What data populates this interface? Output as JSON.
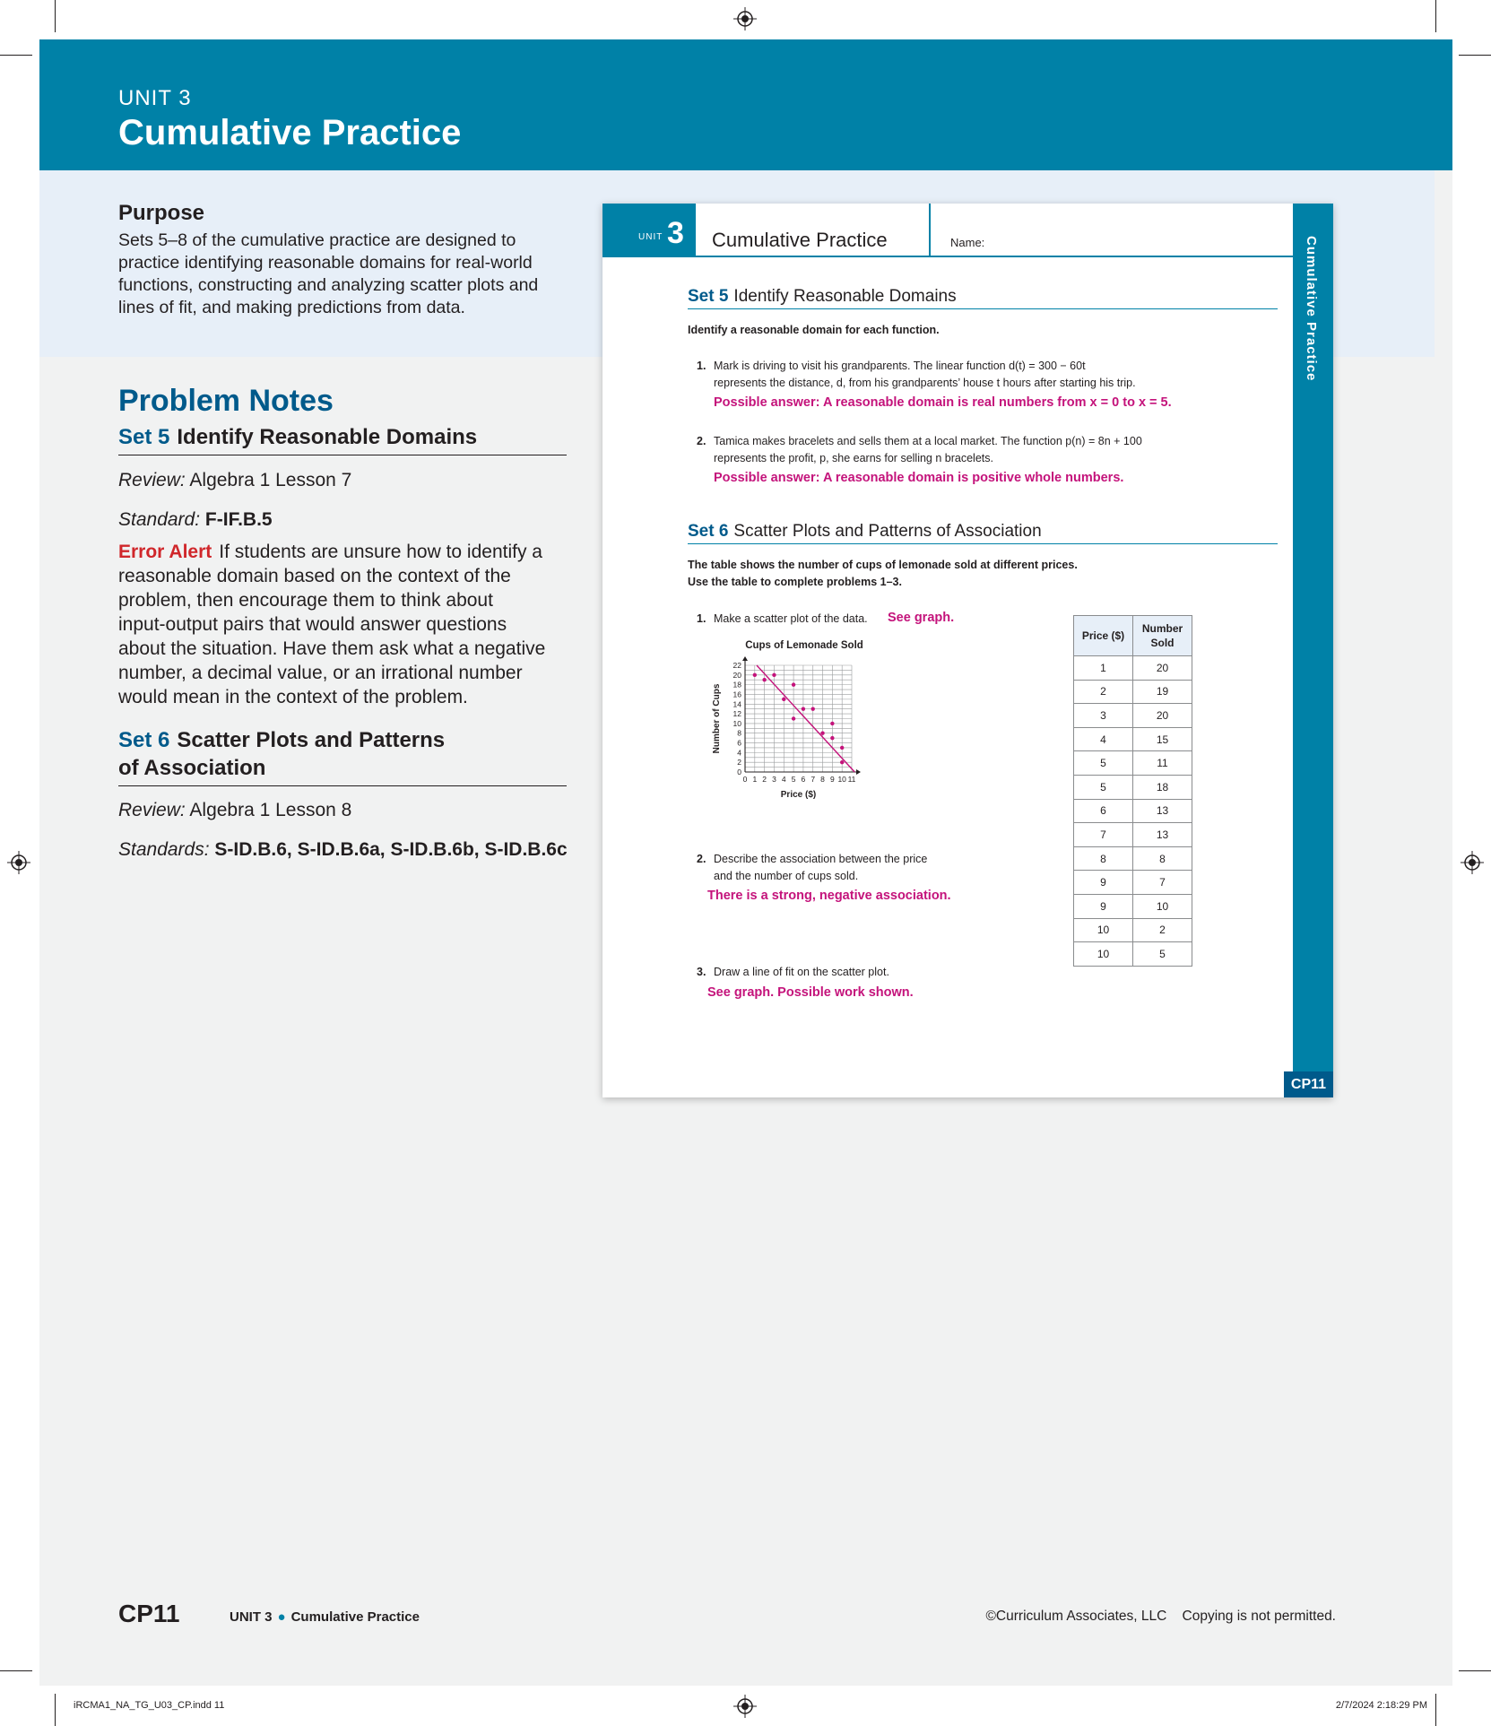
{
  "banner": {
    "unit": "UNIT 3",
    "title": "Cumulative Practice"
  },
  "purpose": {
    "heading": "Purpose",
    "lines": [
      "Sets 5–8 of the cumulative practice are designed to",
      "practice identifying reasonable domains for real-world",
      "functions, constructing and analyzing scatter plots and",
      "lines of fit, and making predictions from data."
    ]
  },
  "notes": {
    "heading": "Problem Notes",
    "set5": {
      "number": "Set 5",
      "title": "Identify Reasonable Domains",
      "review_label": "Review:",
      "review_value": "Algebra 1 Lesson 7",
      "standard_label": "Standard:",
      "standard_value": "F-IF.B.5",
      "error_label": "Error Alert",
      "error_lines": [
        "If students are unsure how to identify a",
        "reasonable domain based on the context of the",
        "problem, then encourage them to think about",
        "input-output pairs that would answer questions",
        "about the situation. Have them ask what a negative",
        "number, a decimal value, or an irrational number",
        "would mean in the context of the problem."
      ]
    },
    "set6": {
      "number": "Set 6",
      "title_line1": "Scatter Plots and Patterns",
      "title_line2": "of Association",
      "review_label": "Review:",
      "review_value": "Algebra 1 Lesson 8",
      "standards_label": "Standards:",
      "standards_value": "S-ID.B.6, S-ID.B.6a, S-ID.B.6b, S-ID.B.6c"
    }
  },
  "student_page": {
    "unit_label": "UNIT",
    "unit_number": "3",
    "title": "Cumulative Practice",
    "name_label": "Name:",
    "side_label": "Cumulative Practice",
    "page_tag": "CP11",
    "set5": {
      "number": "Set 5",
      "title": "Identify Reasonable Domains",
      "instruction": "Identify a reasonable domain for each function.",
      "q1": {
        "num": "1.",
        "line1": "Mark is driving to visit his grandparents. The linear function d(t) = 300 − 60t",
        "line2": "represents the distance, d, from his grandparents’ house t hours after starting his trip.",
        "answer": "Possible answer: A reasonable domain is real numbers from x = 0 to x = 5."
      },
      "q2": {
        "num": "2.",
        "line1": "Tamica makes bracelets and sells them at a local market. The function p(n) = 8n + 100",
        "line2": "represents the profit, p, she earns for selling n bracelets.",
        "answer": "Possible answer: A reasonable domain is positive whole numbers."
      }
    },
    "set6": {
      "number": "Set 6",
      "title": "Scatter Plots and Patterns of Association",
      "instruction1": "The table shows the number of cups of lemonade sold at different prices.",
      "instruction2": "Use the table to complete problems 1–3.",
      "q1": {
        "num": "1.",
        "text": "Make a scatter plot of the data.",
        "answer": "See graph."
      },
      "q2": {
        "num": "2.",
        "line1": "Describe the association between the price",
        "line2": "and the number of cups sold.",
        "answer": "There is a strong, negative association."
      },
      "q3": {
        "num": "3.",
        "text": "Draw a line of fit on the scatter plot.",
        "answer": "See graph. Possible work shown."
      },
      "table": {
        "headers": [
          "Price ($)",
          "Number Sold"
        ],
        "rows": [
          [
            "1",
            "20"
          ],
          [
            "2",
            "19"
          ],
          [
            "3",
            "20"
          ],
          [
            "4",
            "15"
          ],
          [
            "5",
            "11"
          ],
          [
            "5",
            "18"
          ],
          [
            "6",
            "13"
          ],
          [
            "7",
            "13"
          ],
          [
            "8",
            "8"
          ],
          [
            "9",
            "7"
          ],
          [
            "9",
            "10"
          ],
          [
            "10",
            "2"
          ],
          [
            "10",
            "5"
          ]
        ]
      }
    }
  },
  "chart_data": {
    "type": "scatter",
    "title": "Cups of Lemonade Sold",
    "xlabel": "Price ($)",
    "ylabel": "Number of Cups",
    "xlim": [
      0,
      11
    ],
    "ylim": [
      0,
      22
    ],
    "x_ticks": [
      "0",
      "1",
      "2",
      "3",
      "4",
      "5",
      "6",
      "7",
      "8",
      "9",
      "10",
      "11"
    ],
    "y_ticks": [
      "0",
      "2",
      "4",
      "6",
      "8",
      "10",
      "12",
      "14",
      "16",
      "18",
      "20",
      "22"
    ],
    "grid": true,
    "points": [
      [
        1,
        20
      ],
      [
        2,
        19
      ],
      [
        3,
        20
      ],
      [
        4,
        15
      ],
      [
        5,
        11
      ],
      [
        5,
        18
      ],
      [
        6,
        13
      ],
      [
        7,
        13
      ],
      [
        8,
        8
      ],
      [
        9,
        7
      ],
      [
        9,
        10
      ],
      [
        10,
        2
      ],
      [
        10,
        5
      ]
    ],
    "line_of_fit": [
      [
        1.2,
        22
      ],
      [
        11.3,
        0
      ]
    ],
    "point_color": "#c4137b"
  },
  "footer": {
    "page": "CP11",
    "unit": "UNIT 3",
    "section": "Cumulative Practice",
    "copyright": "©Curriculum Associates, LLC",
    "notice": "Copying is not permitted.",
    "file_slug": "iRCMA1_NA_TG_U03_CP.indd   11",
    "date_slug": "2/7/2024   2:18:29 PM"
  },
  "colors": {
    "banner": "#0081a7",
    "heading_blue": "#005a8b",
    "answer_magenta": "#c4137b",
    "error_red": "#d0272b",
    "purpose_band": "#e7eff8"
  }
}
